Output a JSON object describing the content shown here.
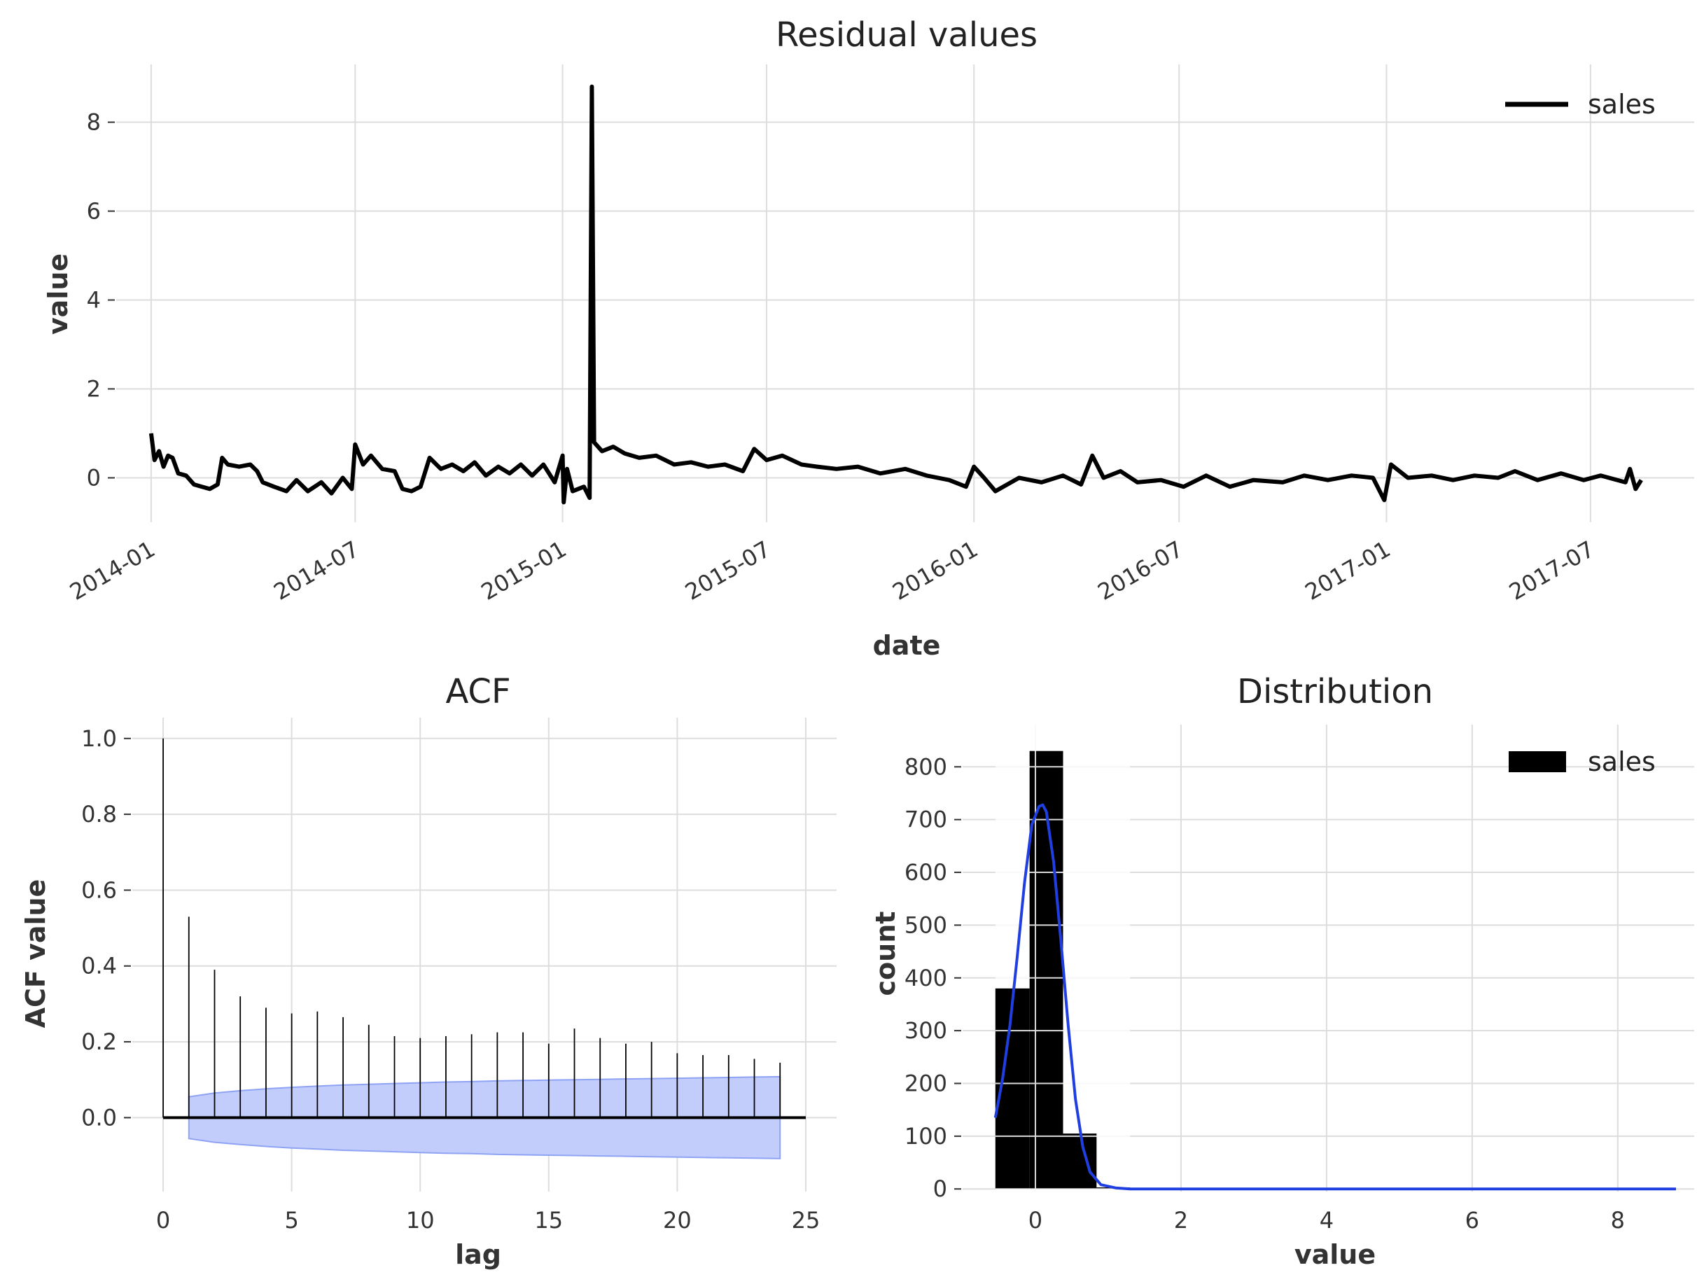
{
  "colors": {
    "line": "#000000",
    "kde": "#1f3fe0",
    "ci_fill": "#c2cdfb",
    "ci_edge": "#8fa3f5",
    "grid": "#dddddd"
  },
  "chart_data": [
    {
      "type": "line",
      "title": "Residual values",
      "xlabel": "date",
      "ylabel": "value",
      "legend": [
        "sales"
      ],
      "legend_position": "top-right",
      "grid": true,
      "x_range": [
        "2013-12-01",
        "2017-10-01"
      ],
      "ylim": [
        -1,
        9.3
      ],
      "x_ticks": [
        "2014-01",
        "2014-07",
        "2015-01",
        "2015-07",
        "2016-01",
        "2016-07",
        "2017-01",
        "2017-07"
      ],
      "y_ticks": [
        "0",
        "2",
        "4",
        "6",
        "8"
      ],
      "series": [
        {
          "name": "sales",
          "points": [
            [
              "2014-01-01",
              1.0
            ],
            [
              "2014-01-04",
              0.4
            ],
            [
              "2014-01-08",
              0.6
            ],
            [
              "2014-01-12",
              0.25
            ],
            [
              "2014-01-16",
              0.5
            ],
            [
              "2014-01-20",
              0.45
            ],
            [
              "2014-01-25",
              0.1
            ],
            [
              "2014-02-01",
              0.05
            ],
            [
              "2014-02-08",
              -0.15
            ],
            [
              "2014-02-15",
              -0.2
            ],
            [
              "2014-02-22",
              -0.25
            ],
            [
              "2014-03-01",
              -0.15
            ],
            [
              "2014-03-05",
              0.45
            ],
            [
              "2014-03-10",
              0.3
            ],
            [
              "2014-03-20",
              0.25
            ],
            [
              "2014-03-30",
              0.3
            ],
            [
              "2014-04-05",
              0.15
            ],
            [
              "2014-04-10",
              -0.1
            ],
            [
              "2014-04-20",
              -0.2
            ],
            [
              "2014-05-01",
              -0.3
            ],
            [
              "2014-05-10",
              -0.05
            ],
            [
              "2014-05-20",
              -0.3
            ],
            [
              "2014-06-01",
              -0.1
            ],
            [
              "2014-06-10",
              -0.35
            ],
            [
              "2014-06-20",
              0.0
            ],
            [
              "2014-06-28",
              -0.25
            ],
            [
              "2014-07-01",
              0.75
            ],
            [
              "2014-07-08",
              0.3
            ],
            [
              "2014-07-15",
              0.5
            ],
            [
              "2014-07-25",
              0.2
            ],
            [
              "2014-08-05",
              0.15
            ],
            [
              "2014-08-12",
              -0.25
            ],
            [
              "2014-08-20",
              -0.3
            ],
            [
              "2014-08-28",
              -0.2
            ],
            [
              "2014-09-05",
              0.45
            ],
            [
              "2014-09-15",
              0.2
            ],
            [
              "2014-09-25",
              0.3
            ],
            [
              "2014-10-05",
              0.15
            ],
            [
              "2014-10-15",
              0.35
            ],
            [
              "2014-10-25",
              0.05
            ],
            [
              "2014-11-05",
              0.25
            ],
            [
              "2014-11-15",
              0.1
            ],
            [
              "2014-11-25",
              0.3
            ],
            [
              "2014-12-05",
              0.05
            ],
            [
              "2014-12-15",
              0.3
            ],
            [
              "2014-12-25",
              -0.1
            ],
            [
              "2015-01-01",
              0.5
            ],
            [
              "2015-01-02",
              -0.55
            ],
            [
              "2015-01-05",
              0.2
            ],
            [
              "2015-01-10",
              -0.3
            ],
            [
              "2015-01-20",
              -0.2
            ],
            [
              "2015-01-25",
              -0.45
            ],
            [
              "2015-01-27",
              8.8
            ],
            [
              "2015-01-29",
              0.8
            ],
            [
              "2015-02-05",
              0.6
            ],
            [
              "2015-02-15",
              0.7
            ],
            [
              "2015-02-25",
              0.55
            ],
            [
              "2015-03-10",
              0.45
            ],
            [
              "2015-03-25",
              0.5
            ],
            [
              "2015-04-10",
              0.3
            ],
            [
              "2015-04-25",
              0.35
            ],
            [
              "2015-05-10",
              0.25
            ],
            [
              "2015-05-25",
              0.3
            ],
            [
              "2015-06-10",
              0.15
            ],
            [
              "2015-06-20",
              0.65
            ],
            [
              "2015-07-01",
              0.4
            ],
            [
              "2015-07-15",
              0.5
            ],
            [
              "2015-08-01",
              0.3
            ],
            [
              "2015-08-15",
              0.25
            ],
            [
              "2015-09-01",
              0.2
            ],
            [
              "2015-09-20",
              0.25
            ],
            [
              "2015-10-10",
              0.1
            ],
            [
              "2015-11-01",
              0.2
            ],
            [
              "2015-11-20",
              0.05
            ],
            [
              "2015-12-10",
              -0.05
            ],
            [
              "2015-12-25",
              -0.2
            ],
            [
              "2016-01-01",
              0.25
            ],
            [
              "2016-01-10",
              0.0
            ],
            [
              "2016-01-20",
              -0.3
            ],
            [
              "2016-02-10",
              0.0
            ],
            [
              "2016-03-01",
              -0.1
            ],
            [
              "2016-03-20",
              0.05
            ],
            [
              "2016-04-05",
              -0.15
            ],
            [
              "2016-04-15",
              0.5
            ],
            [
              "2016-04-25",
              0.0
            ],
            [
              "2016-05-10",
              0.15
            ],
            [
              "2016-05-25",
              -0.1
            ],
            [
              "2016-06-15",
              -0.05
            ],
            [
              "2016-07-05",
              -0.2
            ],
            [
              "2016-07-25",
              0.05
            ],
            [
              "2016-08-15",
              -0.2
            ],
            [
              "2016-09-05",
              -0.05
            ],
            [
              "2016-10-01",
              -0.1
            ],
            [
              "2016-10-20",
              0.05
            ],
            [
              "2016-11-10",
              -0.05
            ],
            [
              "2016-12-01",
              0.05
            ],
            [
              "2016-12-20",
              0.0
            ],
            [
              "2016-12-30",
              -0.5
            ],
            [
              "2017-01-05",
              0.3
            ],
            [
              "2017-01-20",
              0.0
            ],
            [
              "2017-02-10",
              0.05
            ],
            [
              "2017-03-01",
              -0.05
            ],
            [
              "2017-03-20",
              0.05
            ],
            [
              "2017-04-10",
              0.0
            ],
            [
              "2017-04-25",
              0.15
            ],
            [
              "2017-05-15",
              -0.05
            ],
            [
              "2017-06-05",
              0.1
            ],
            [
              "2017-06-25",
              -0.05
            ],
            [
              "2017-07-10",
              0.05
            ],
            [
              "2017-08-01",
              -0.1
            ],
            [
              "2017-08-05",
              0.2
            ],
            [
              "2017-08-10",
              -0.25
            ],
            [
              "2017-08-15",
              -0.05
            ]
          ]
        }
      ]
    },
    {
      "type": "bar",
      "title": "ACF",
      "xlabel": "lag",
      "ylabel": "ACF value",
      "grid": true,
      "xlim": [
        -1.2,
        26.2
      ],
      "ylim": [
        -0.195,
        1.055
      ],
      "x_ticks": [
        "0",
        "5",
        "10",
        "15",
        "20",
        "25"
      ],
      "y_ticks": [
        "0.0",
        "0.2",
        "0.4",
        "0.6",
        "0.8",
        "1.0"
      ],
      "lags": [
        0,
        1,
        2,
        3,
        4,
        5,
        6,
        7,
        8,
        9,
        10,
        11,
        12,
        13,
        14,
        15,
        16,
        17,
        18,
        19,
        20,
        21,
        22,
        23,
        24
      ],
      "values": [
        1.0,
        0.53,
        0.39,
        0.32,
        0.29,
        0.275,
        0.28,
        0.265,
        0.245,
        0.215,
        0.21,
        0.215,
        0.22,
        0.225,
        0.225,
        0.195,
        0.235,
        0.21,
        0.195,
        0.2,
        0.17,
        0.165,
        0.165,
        0.155,
        0.145
      ],
      "confidence_band": [
        0.055,
        0.065,
        0.071,
        0.076,
        0.08,
        0.083,
        0.086,
        0.088,
        0.09,
        0.092,
        0.094,
        0.095,
        0.097,
        0.098,
        0.099,
        0.1,
        0.101,
        0.102,
        0.103,
        0.104,
        0.105,
        0.106,
        0.107,
        0.108
      ]
    },
    {
      "type": "bar",
      "title": "Distribution",
      "xlabel": "value",
      "ylabel": "count",
      "legend": [
        "sales"
      ],
      "legend_position": "top-right",
      "grid": true,
      "xlim": [
        -1.0,
        9.05
      ],
      "ylim": [
        -5,
        880
      ],
      "x_ticks": [
        "0",
        "2",
        "4",
        "6",
        "8"
      ],
      "y_ticks": [
        "0",
        "100",
        "200",
        "300",
        "400",
        "500",
        "600",
        "700",
        "800"
      ],
      "bins": [
        [
          -0.55,
          -0.08
        ],
        [
          -0.08,
          0.38
        ],
        [
          0.38,
          0.84
        ],
        [
          0.84,
          1.3
        ]
      ],
      "counts": [
        380,
        830,
        105,
        3
      ],
      "kde": {
        "x": [
          -0.55,
          -0.45,
          -0.35,
          -0.25,
          -0.15,
          -0.05,
          0.05,
          0.1,
          0.15,
          0.25,
          0.35,
          0.45,
          0.55,
          0.65,
          0.75,
          0.9,
          1.1,
          1.3,
          1.6,
          2.0,
          4.0,
          6.0,
          8.0,
          8.8
        ],
        "y": [
          135,
          210,
          310,
          440,
          580,
          690,
          725,
          728,
          715,
          620,
          470,
          310,
          170,
          80,
          32,
          8,
          2,
          0,
          0,
          0,
          0,
          0,
          0,
          0
        ]
      }
    }
  ]
}
